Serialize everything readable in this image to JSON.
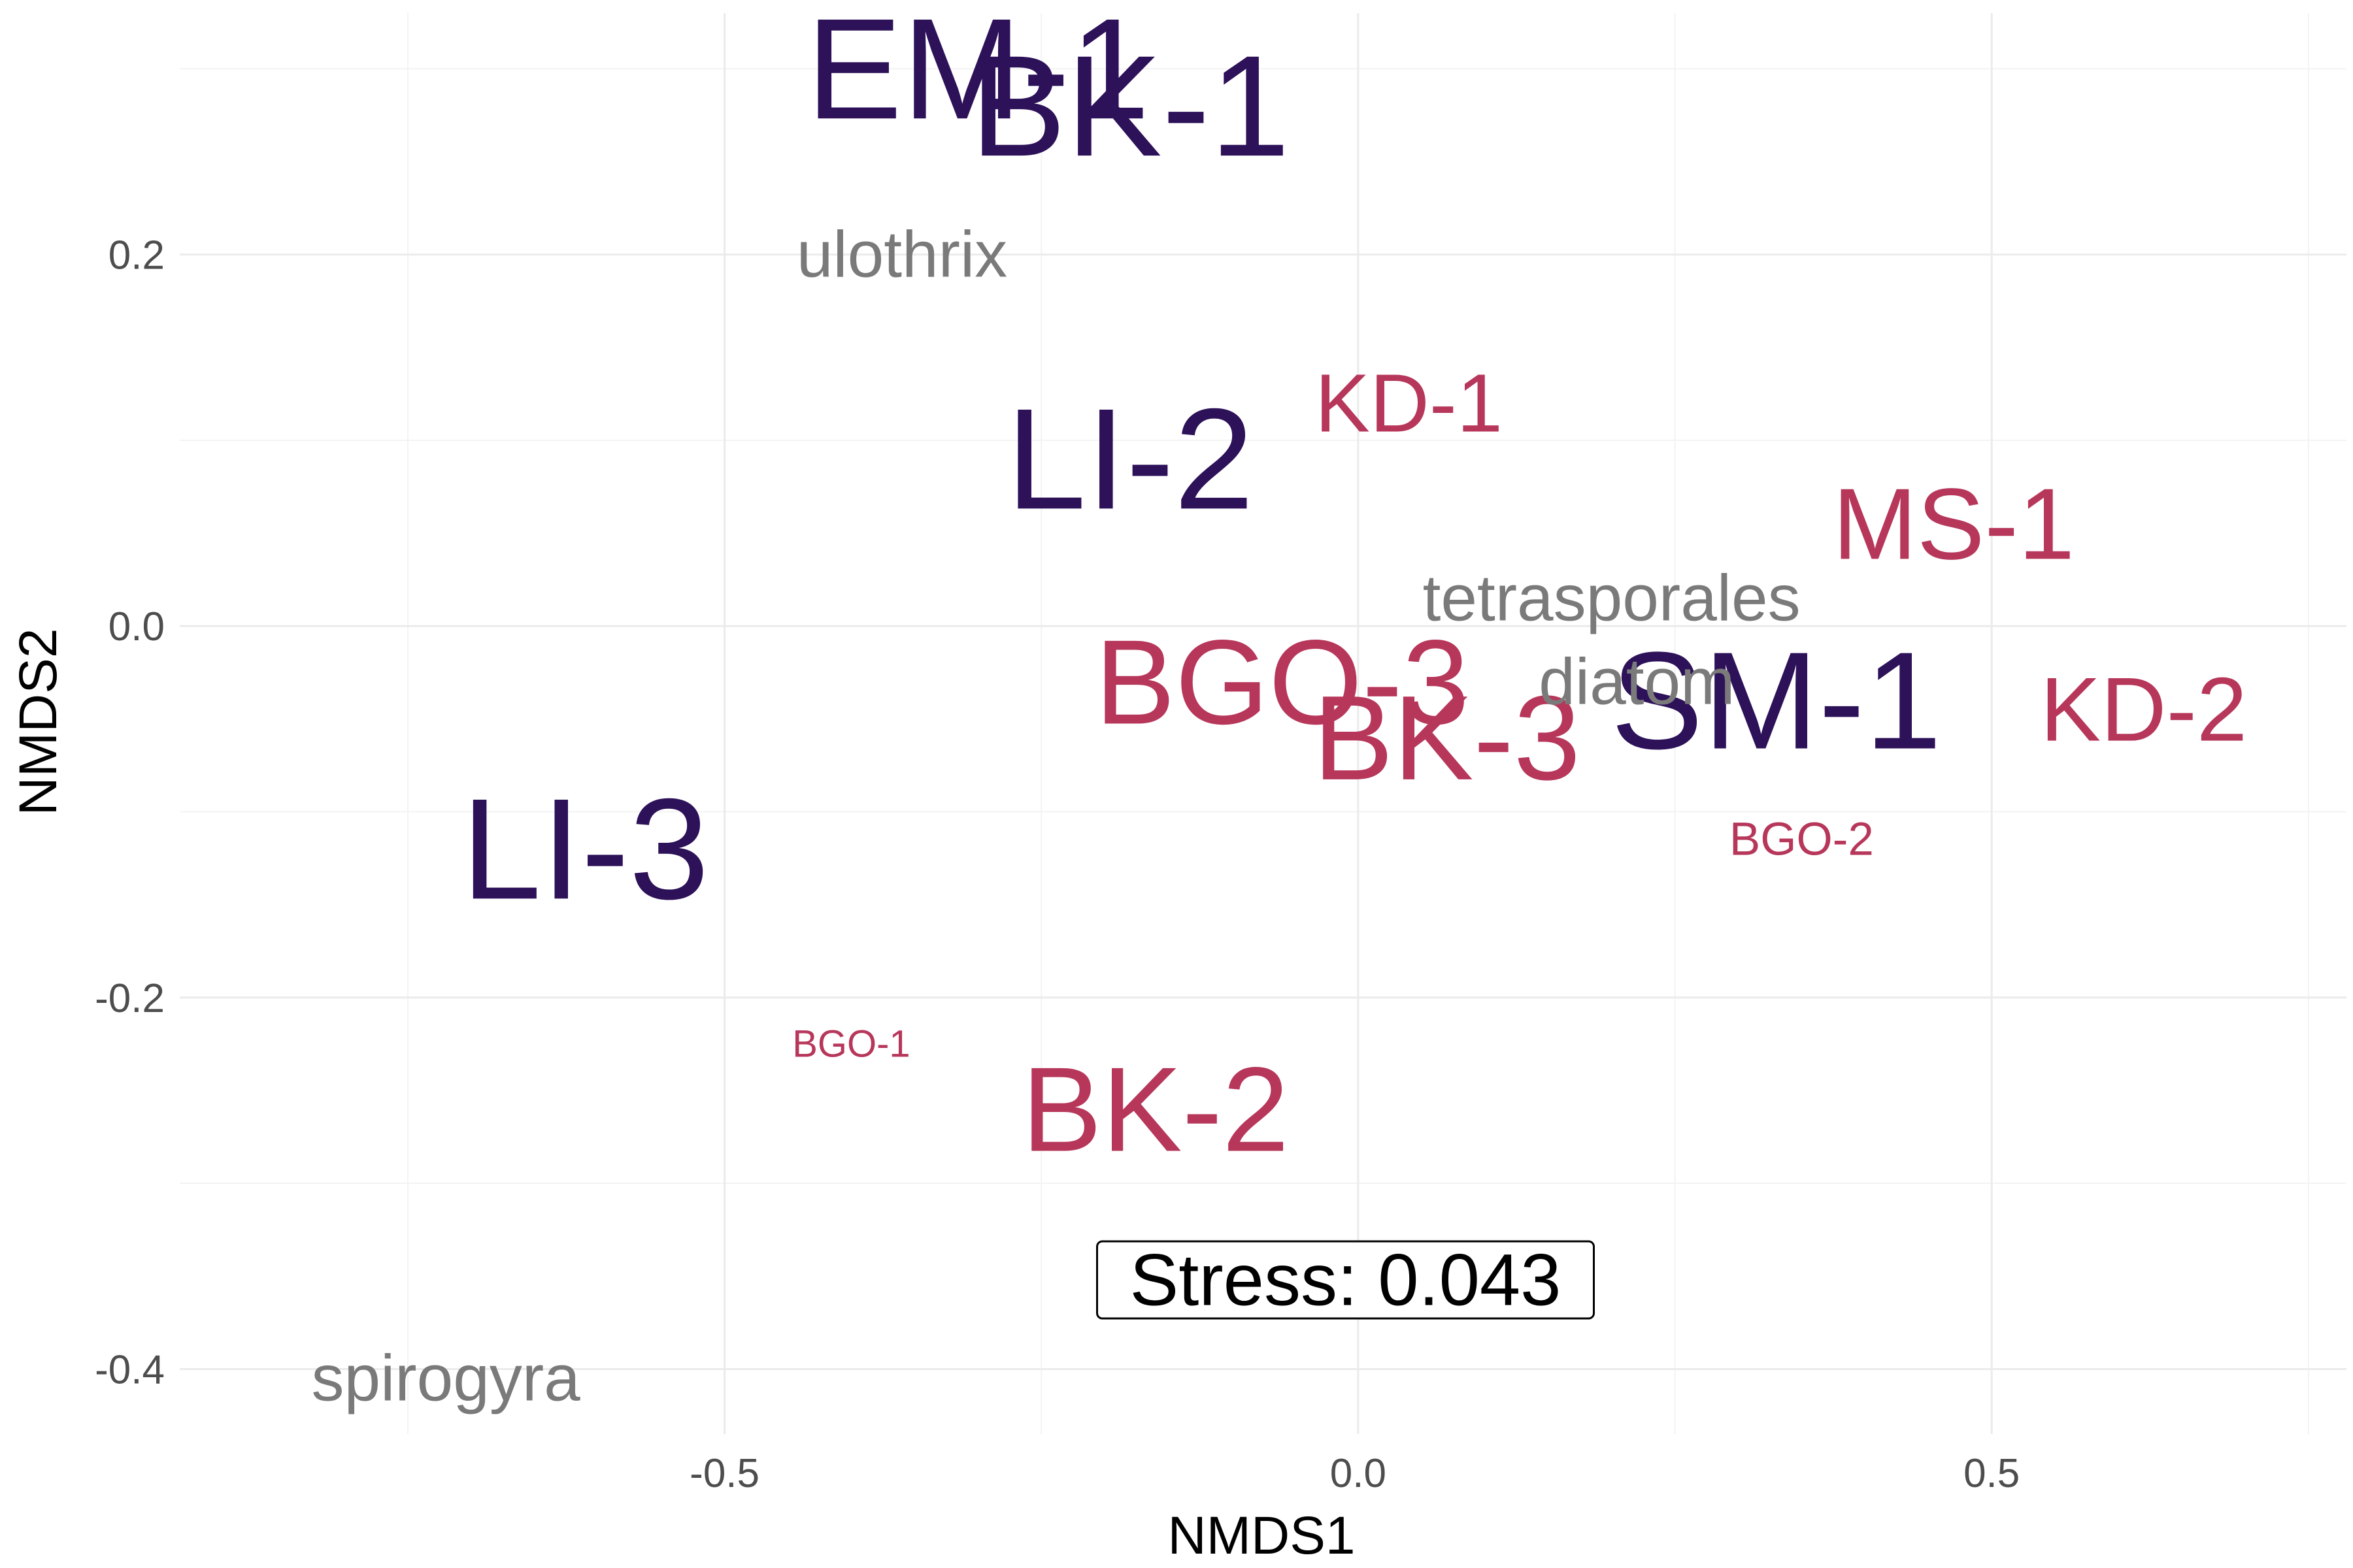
{
  "chart_data": {
    "type": "scatter",
    "title": "",
    "xlabel": "NMDS1",
    "ylabel": "NMDS2",
    "xlim": [
      -0.93,
      0.78
    ],
    "ylim": [
      -0.435,
      0.33
    ],
    "x_ticks": [
      -0.5,
      0.0,
      0.5
    ],
    "x_tick_labels": [
      "-0.5",
      "0.0",
      "0.5"
    ],
    "y_ticks": [
      -0.4,
      -0.2,
      0.0,
      0.2
    ],
    "y_tick_labels": [
      "-0.4",
      "-0.2",
      "0.0",
      "0.2"
    ],
    "grid": true,
    "points": [
      {
        "label": "EM-1",
        "x": -0.3,
        "y": 0.3,
        "group": "site-dark",
        "weight": 1.0
      },
      {
        "label": "BK-1",
        "x": -0.18,
        "y": 0.28,
        "group": "site-dark",
        "weight": 1.0
      },
      {
        "label": "LI-2",
        "x": -0.18,
        "y": 0.09,
        "group": "site-dark",
        "weight": 1.0
      },
      {
        "label": "LI-3",
        "x": -0.61,
        "y": -0.12,
        "group": "site-dark",
        "weight": 1.0
      },
      {
        "label": "SM-1",
        "x": 0.33,
        "y": -0.04,
        "group": "site-dark",
        "weight": 0.95
      },
      {
        "label": "KD-1",
        "x": 0.04,
        "y": 0.12,
        "group": "site-red",
        "weight": 0.42
      },
      {
        "label": "MS-1",
        "x": 0.47,
        "y": 0.055,
        "group": "site-red",
        "weight": 0.6
      },
      {
        "label": "KD-2",
        "x": 0.62,
        "y": -0.045,
        "group": "site-red",
        "weight": 0.5
      },
      {
        "label": "BGO-3",
        "x": -0.06,
        "y": -0.03,
        "group": "site-red",
        "weight": 0.78
      },
      {
        "label": "BK-3",
        "x": 0.07,
        "y": -0.06,
        "group": "site-red",
        "weight": 0.78
      },
      {
        "label": "BGO-2",
        "x": 0.35,
        "y": -0.115,
        "group": "site-red",
        "weight": 0.08
      },
      {
        "label": "BGO-1",
        "x": -0.4,
        "y": -0.225,
        "group": "site-red",
        "weight": 0.0
      },
      {
        "label": "BK-2",
        "x": -0.16,
        "y": -0.26,
        "group": "site-red",
        "weight": 0.78
      },
      {
        "label": "ulothrix",
        "x": -0.36,
        "y": 0.2,
        "group": "species",
        "weight": 0.5
      },
      {
        "label": "tetrasporales",
        "x": 0.2,
        "y": 0.015,
        "group": "species",
        "weight": 0.5
      },
      {
        "label": "diatom",
        "x": 0.22,
        "y": -0.03,
        "group": "species",
        "weight": 0.5
      },
      {
        "label": "spirogyra",
        "x": -0.72,
        "y": -0.405,
        "group": "species",
        "weight": 0.5
      }
    ],
    "colors": {
      "site-dark": "#2d1159",
      "site-red": "#b7375b",
      "species": "#7a7a7a"
    },
    "annotation": {
      "text": "Stress:  0.043",
      "x": -0.01,
      "y": -0.352
    }
  }
}
